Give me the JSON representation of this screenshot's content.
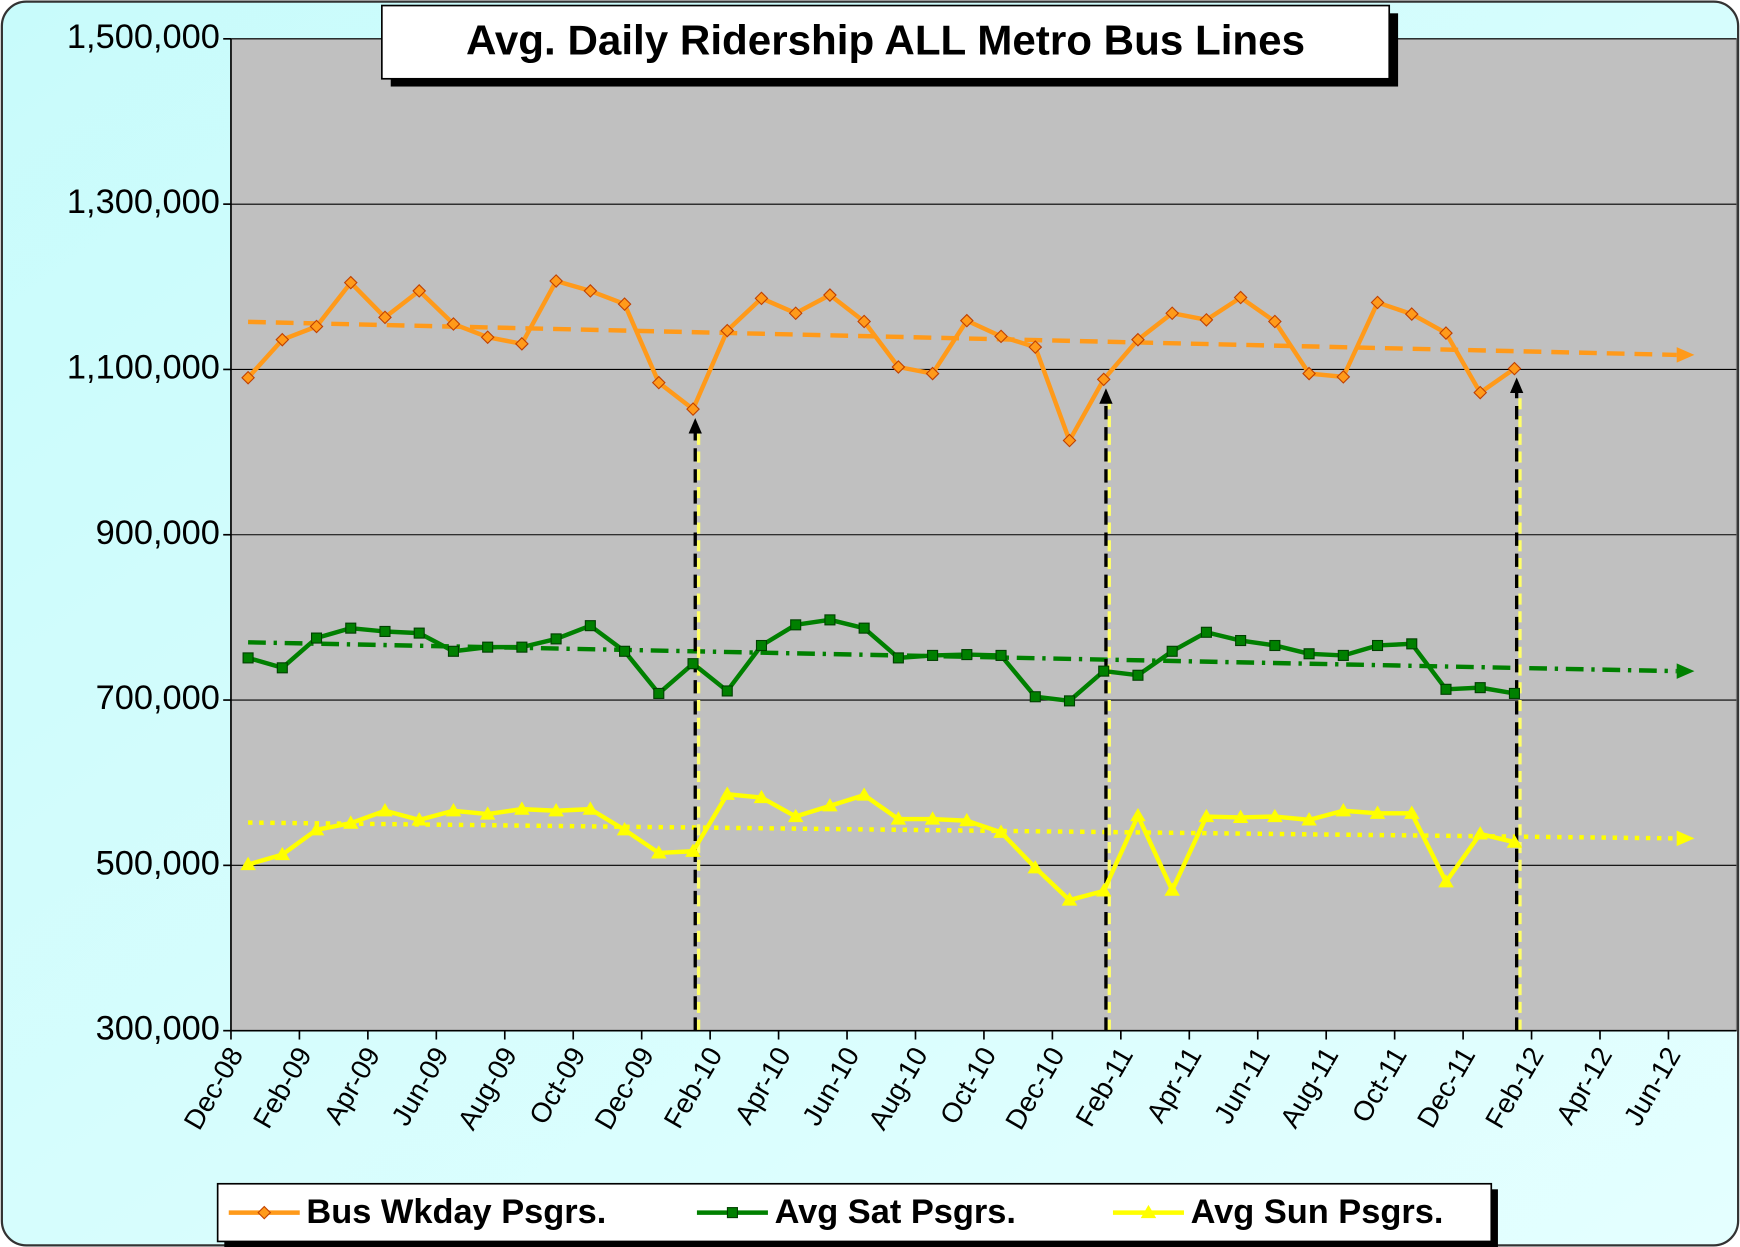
{
  "chart_data": {
    "type": "line",
    "title": "Avg. Daily Ridership ALL Metro Bus Lines",
    "categories": [
      "Dec-08",
      null,
      "Feb-09",
      null,
      "Apr-09",
      null,
      "Jun-09",
      null,
      "Aug-09",
      null,
      "Oct-09",
      null,
      "Dec-09",
      null,
      "Feb-10",
      null,
      "Apr-10",
      null,
      "Jun-10",
      null,
      "Aug-10",
      null,
      "Oct-10",
      null,
      "Dec-10",
      null,
      "Feb-11",
      null,
      "Apr-11",
      null,
      "Jun-11",
      null,
      "Aug-11",
      null,
      "Oct-11",
      null,
      "Dec-11",
      null,
      "Feb-12",
      null,
      "Apr-12",
      null,
      "Jun-12"
    ],
    "series": [
      {
        "name": "Bus Wkday Psgrs.",
        "color": "#ff9a1a",
        "marker": "diamond",
        "values": [
          1090000,
          1136000,
          1152000,
          1205000,
          1163000,
          1195000,
          1155000,
          1139000,
          1131000,
          1207000,
          1195000,
          1179000,
          1084000,
          1052000,
          1147000,
          1186000,
          1168000,
          1190000,
          1158000,
          1103000,
          1095000,
          1159000,
          1140000,
          1127000,
          1014000,
          1088000,
          1136000,
          1168000,
          1160000,
          1187000,
          1158000,
          1095000,
          1091000,
          1181000,
          1167000,
          1144000,
          1072000,
          1101000,
          null,
          null,
          null,
          null,
          null
        ]
      },
      {
        "name": "Avg Sat Psgrs.",
        "color": "#008000",
        "marker": "square",
        "values": [
          751000,
          739000,
          775000,
          787000,
          783000,
          781000,
          759000,
          764000,
          764000,
          774000,
          790000,
          759000,
          708000,
          744000,
          711000,
          766000,
          791000,
          797000,
          787000,
          751000,
          754000,
          755000,
          754000,
          704000,
          699000,
          735000,
          730000,
          759000,
          782000,
          772000,
          766000,
          756000,
          754000,
          766000,
          768000,
          713000,
          715000,
          708000,
          null,
          null,
          null,
          null,
          null
        ]
      },
      {
        "name": "Avg Sun  Psgrs.",
        "color": "#ffff00",
        "marker": "triangle",
        "values": [
          501000,
          513000,
          543000,
          551000,
          566000,
          555000,
          566000,
          562000,
          568000,
          566000,
          568000,
          543000,
          515000,
          517000,
          586000,
          582000,
          559000,
          572000,
          585000,
          556000,
          556000,
          554000,
          540000,
          497000,
          458000,
          469000,
          560000,
          470000,
          559000,
          558000,
          559000,
          555000,
          566000,
          563000,
          563000,
          480000,
          538000,
          528000,
          null,
          null,
          null,
          null,
          null
        ]
      }
    ],
    "ylim": [
      300000,
      1500000
    ],
    "yticks": [
      {
        "value": 300000,
        "label": "300,000"
      },
      {
        "value": 500000,
        "label": "500,000"
      },
      {
        "value": 700000,
        "label": "700,000"
      },
      {
        "value": 900000,
        "label": "900,000"
      },
      {
        "value": 1100000,
        "label": "1,100,000"
      },
      {
        "value": 1300000,
        "label": "1,300,000"
      },
      {
        "value": 1500000,
        "label": "1,500,000"
      }
    ],
    "grid": true,
    "legend": "bottom",
    "trendline": true
  }
}
